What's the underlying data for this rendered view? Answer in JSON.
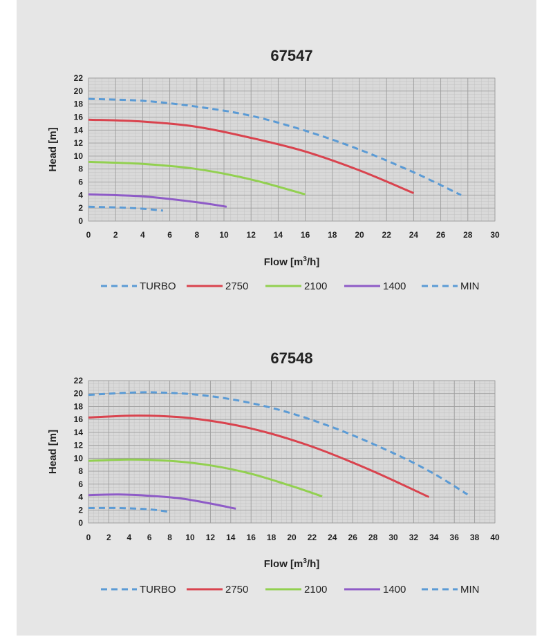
{
  "chart_data": [
    {
      "type": "line",
      "title": "67547",
      "xlabel": "Flow [m",
      "xlabel_sup": "3",
      "xlabel_suffix": "/h]",
      "ylabel": "Head [m]",
      "xlim": [
        0,
        30
      ],
      "ylim": [
        0,
        22
      ],
      "xticks": [
        0,
        2,
        4,
        6,
        8,
        10,
        12,
        14,
        16,
        18,
        20,
        22,
        24,
        26,
        28,
        30
      ],
      "yticks": [
        0,
        2,
        4,
        6,
        8,
        10,
        12,
        14,
        16,
        18,
        20,
        22
      ],
      "grid": true,
      "series": [
        {
          "name": "TURBO",
          "color": "#5b9bd5",
          "dashed": true,
          "x": [
            0,
            4,
            8,
            12,
            16,
            20,
            24,
            27.5
          ],
          "y": [
            18.8,
            18.5,
            17.6,
            16.2,
            13.9,
            11.0,
            7.5,
            4.0
          ]
        },
        {
          "name": "2750",
          "color": "#d9434e",
          "dashed": false,
          "x": [
            0,
            4,
            8,
            12,
            16,
            20,
            24
          ],
          "y": [
            15.6,
            15.3,
            14.5,
            12.8,
            10.7,
            7.8,
            4.3
          ]
        },
        {
          "name": "2100",
          "color": "#92d050",
          "dashed": false,
          "x": [
            0,
            4,
            8,
            12,
            16
          ],
          "y": [
            9.1,
            8.8,
            8.0,
            6.4,
            4.1
          ]
        },
        {
          "name": "1400",
          "color": "#8e5bc7",
          "dashed": false,
          "x": [
            0,
            4,
            8,
            10.2
          ],
          "y": [
            4.1,
            3.8,
            2.9,
            2.2
          ]
        },
        {
          "name": "MIN",
          "color": "#5b9bd5",
          "dashed": true,
          "x": [
            0,
            2,
            4,
            5.5
          ],
          "y": [
            2.2,
            2.1,
            1.9,
            1.6
          ]
        }
      ]
    },
    {
      "type": "line",
      "title": "67548",
      "xlabel": "Flow [m",
      "xlabel_sup": "3",
      "xlabel_suffix": "/h]",
      "ylabel": "Head [m]",
      "xlim": [
        0,
        40
      ],
      "ylim": [
        0,
        22
      ],
      "xticks": [
        0,
        2,
        4,
        6,
        8,
        10,
        12,
        14,
        16,
        18,
        20,
        22,
        24,
        26,
        28,
        30,
        32,
        34,
        36,
        38,
        40
      ],
      "yticks": [
        0,
        2,
        4,
        6,
        8,
        10,
        12,
        14,
        16,
        18,
        20,
        22
      ],
      "grid": true,
      "series": [
        {
          "name": "TURBO",
          "color": "#5b9bd5",
          "dashed": true,
          "x": [
            0,
            6,
            12,
            18,
            24,
            30,
            34,
            37.3
          ],
          "y": [
            19.8,
            20.2,
            19.6,
            17.8,
            14.8,
            10.8,
            7.6,
            4.4
          ]
        },
        {
          "name": "2750",
          "color": "#d9434e",
          "dashed": false,
          "x": [
            0,
            5,
            10,
            16,
            22,
            28,
            33.5
          ],
          "y": [
            16.3,
            16.6,
            16.2,
            14.6,
            11.8,
            8.0,
            4.0
          ]
        },
        {
          "name": "2100",
          "color": "#92d050",
          "dashed": false,
          "x": [
            0,
            4,
            8,
            12,
            16,
            20,
            23
          ],
          "y": [
            9.6,
            9.8,
            9.6,
            8.9,
            7.6,
            5.7,
            4.1
          ]
        },
        {
          "name": "1400",
          "color": "#8e5bc7",
          "dashed": false,
          "x": [
            0,
            3,
            6,
            9,
            12,
            14.5
          ],
          "y": [
            4.3,
            4.4,
            4.2,
            3.8,
            3.0,
            2.2
          ]
        },
        {
          "name": "MIN",
          "color": "#5b9bd5",
          "dashed": true,
          "x": [
            0,
            3,
            6,
            8
          ],
          "y": [
            2.3,
            2.3,
            2.1,
            1.7
          ]
        }
      ]
    }
  ]
}
